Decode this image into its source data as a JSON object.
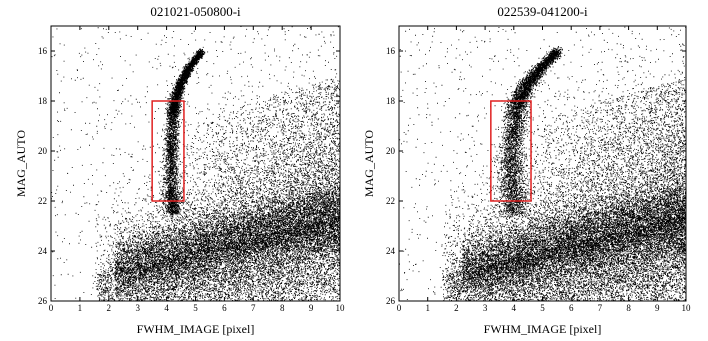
{
  "chart_data": [
    {
      "type": "scatter",
      "title": "021021-050800-i",
      "xlabel": "FWHM_IMAGE [pixel]",
      "ylabel": "MAG_AUTO",
      "xlim": [
        0,
        10
      ],
      "ylim": [
        26,
        15
      ],
      "y_inverted": true,
      "xticks": [
        "0",
        "1",
        "2",
        "3",
        "4",
        "5",
        "6",
        "7",
        "8",
        "9",
        "10"
      ],
      "yticks": [
        "16",
        "18",
        "20",
        "22",
        "24",
        "26"
      ],
      "point_color": "#000000",
      "stellar_locus": [
        {
          "x": 5.2,
          "y": 16.0
        },
        {
          "x": 4.8,
          "y": 16.6
        },
        {
          "x": 4.5,
          "y": 17.2
        },
        {
          "x": 4.3,
          "y": 17.9
        },
        {
          "x": 4.2,
          "y": 18.5
        },
        {
          "x": 4.15,
          "y": 20.0
        },
        {
          "x": 4.15,
          "y": 21.5
        },
        {
          "x": 4.2,
          "y": 22.5
        }
      ],
      "selection_box": {
        "x0": 3.5,
        "x1": 4.6,
        "y0": 18.0,
        "y1": 22.0,
        "color": "#e02020"
      }
    },
    {
      "type": "scatter",
      "title": "022539-041200-i",
      "xlabel": "FWHM_IMAGE [pixel]",
      "ylabel": "MAG_AUTO",
      "xlim": [
        0,
        10
      ],
      "ylim": [
        26,
        15
      ],
      "y_inverted": true,
      "xticks": [
        "0",
        "1",
        "2",
        "3",
        "4",
        "5",
        "6",
        "7",
        "8",
        "9",
        "10"
      ],
      "yticks": [
        "16",
        "18",
        "20",
        "22",
        "24",
        "26"
      ],
      "point_color": "#000000",
      "stellar_locus": [
        {
          "x": 5.5,
          "y": 16.0
        },
        {
          "x": 4.9,
          "y": 16.7
        },
        {
          "x": 4.4,
          "y": 17.4
        },
        {
          "x": 4.1,
          "y": 18.2
        },
        {
          "x": 3.95,
          "y": 19.5
        },
        {
          "x": 3.9,
          "y": 21.0
        },
        {
          "x": 4.0,
          "y": 22.5
        }
      ],
      "selection_box": {
        "x0": 3.2,
        "x1": 4.6,
        "y0": 18.0,
        "y1": 22.0,
        "color": "#e02020"
      }
    }
  ]
}
